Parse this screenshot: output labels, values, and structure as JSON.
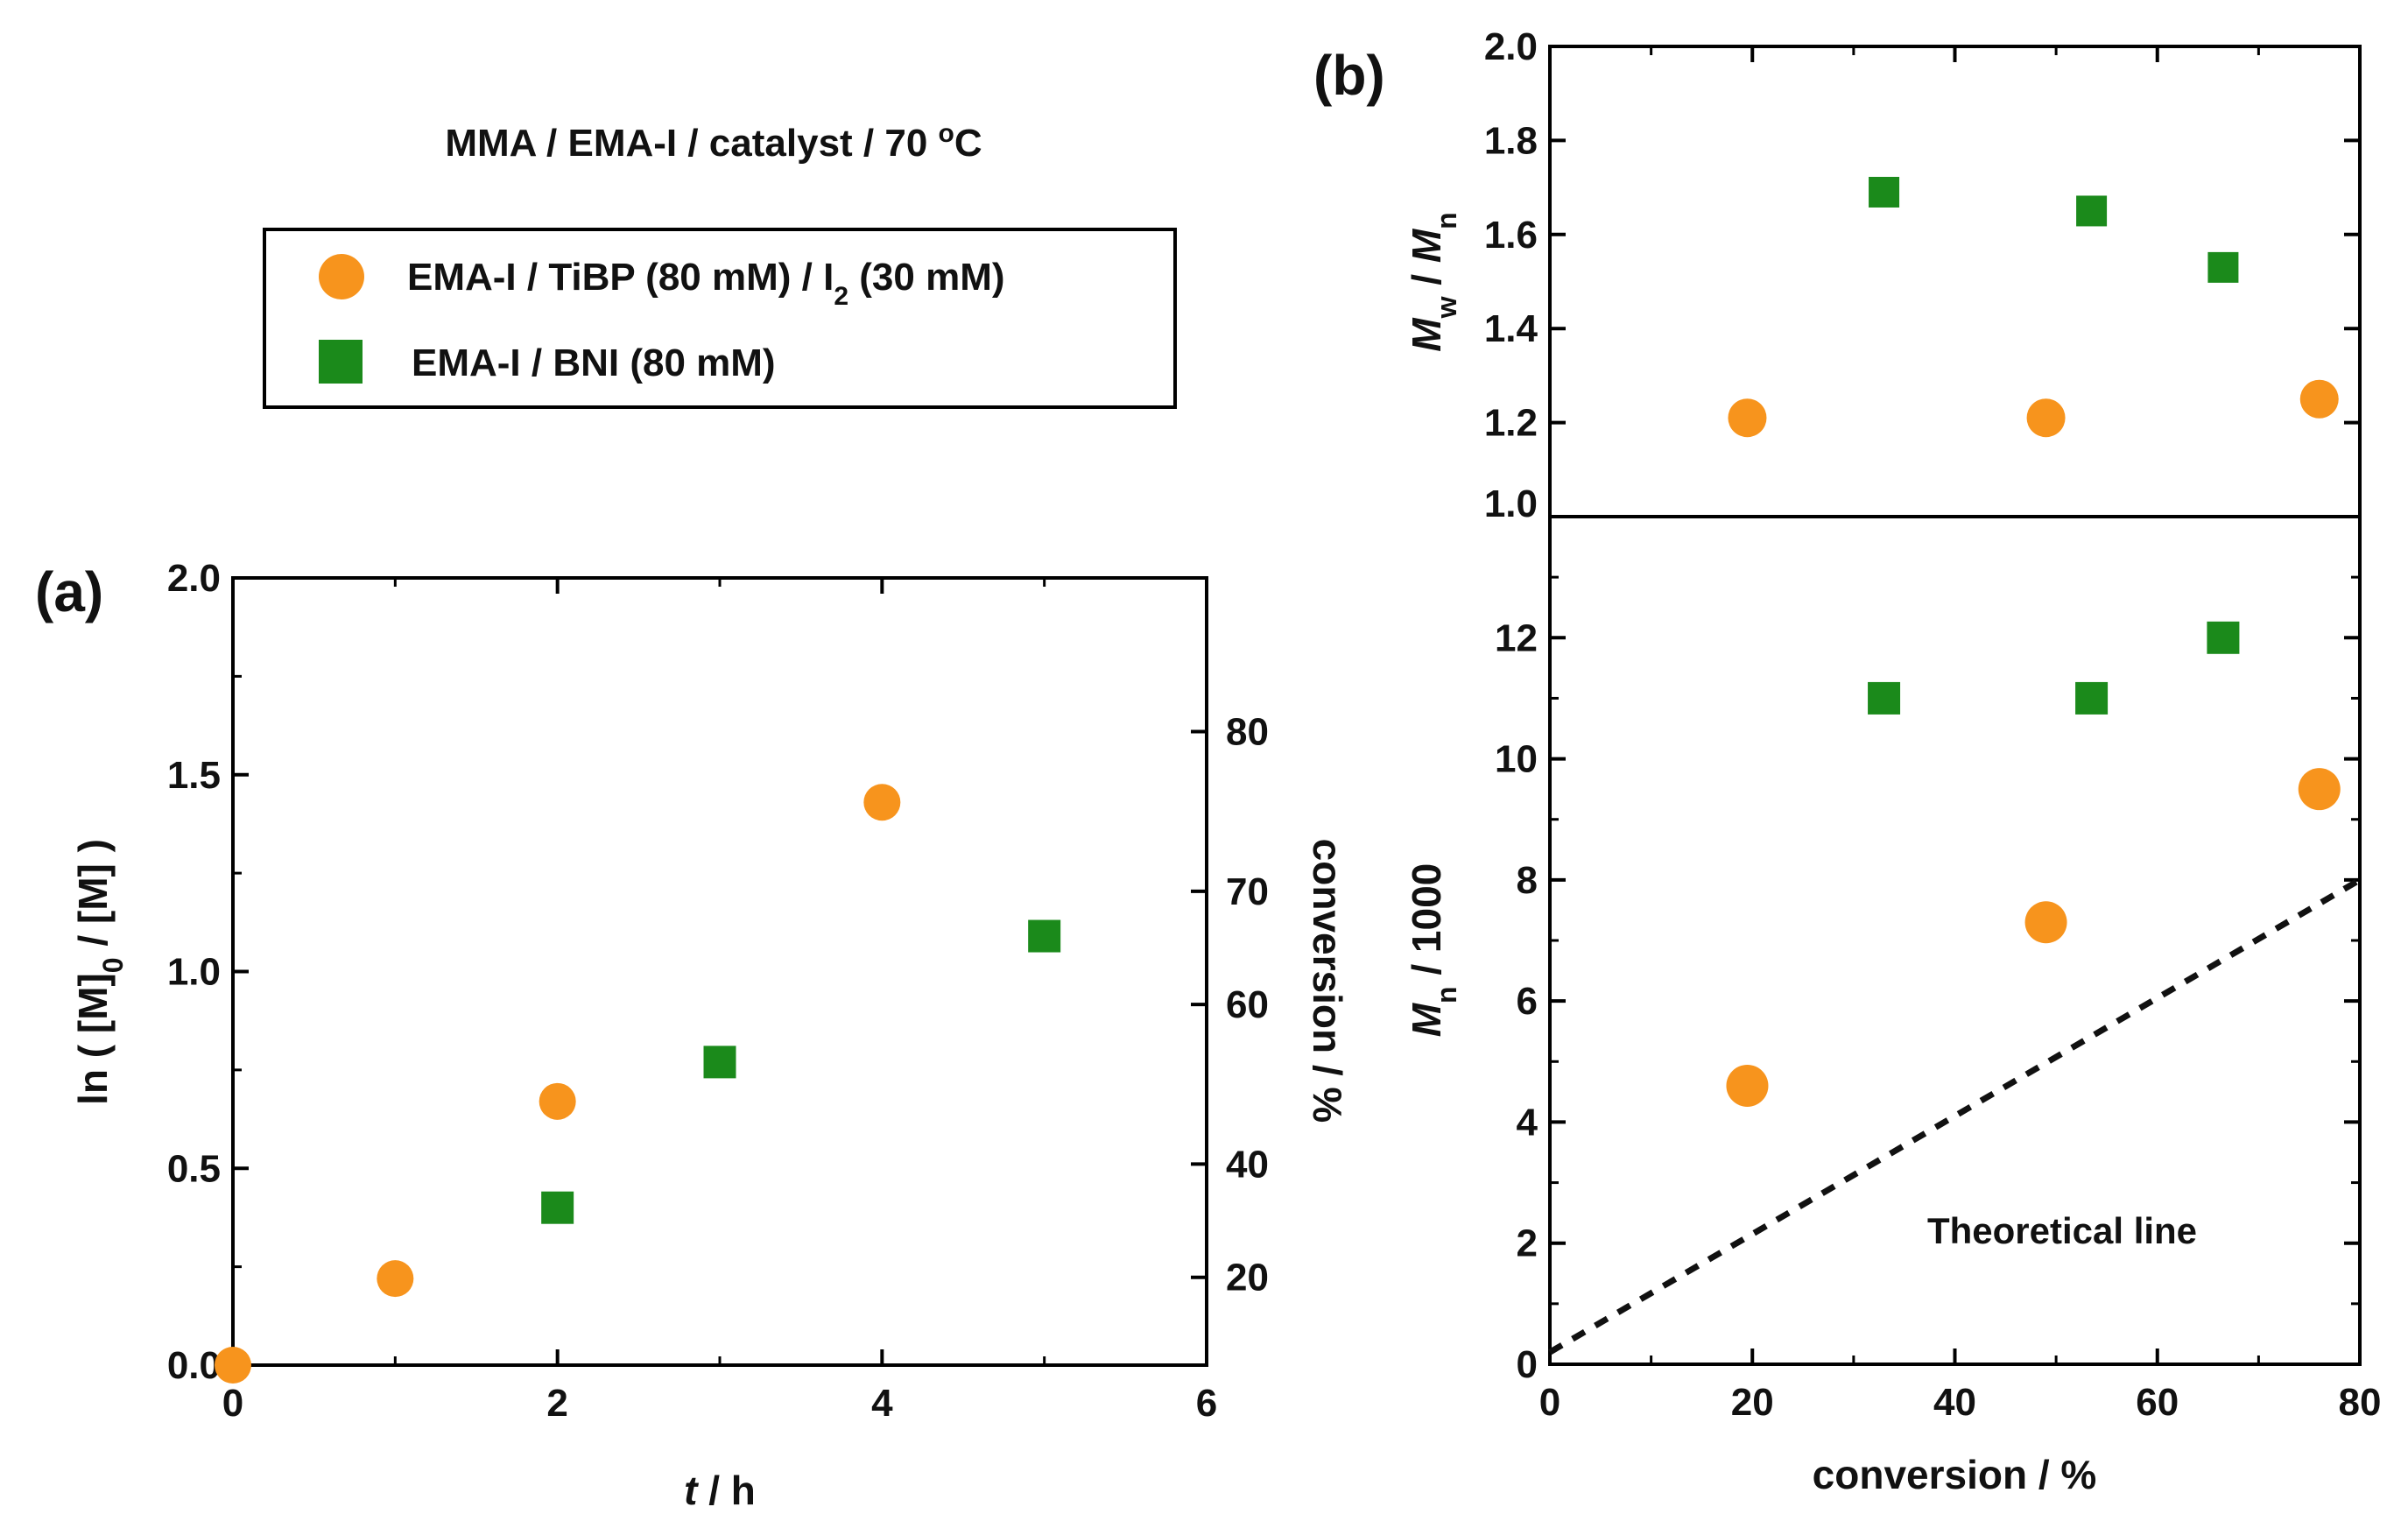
{
  "figure": {
    "condition_title": "MMA / EMA-I / catalyst / 70 ",
    "condition_deg": "o",
    "condition_unit": "C",
    "colors": {
      "orange": "#F7941D",
      "green": "#1B8A1B",
      "axis": "#000000"
    }
  },
  "legend": {
    "item1": {
      "a": "EMA-I / TiBP (80 mM) / I",
      "sub": "2",
      "b": " (30 mM)",
      "marker": "circle"
    },
    "item2": {
      "label": "EMA-I / BNI (80 mM)",
      "marker": "square"
    }
  },
  "theory_label": "Theoretical line",
  "chart_data": [
    {
      "panel": "(a)",
      "type": "scatter",
      "xlabel_italic": "t",
      "xlabel_rest": " / h",
      "ylabel_prefix": "ln ( [M]",
      "ylabel_sub": "0",
      "ylabel_suffix": " / [M] )",
      "y2label": "conversion / %",
      "xlim": [
        0,
        6
      ],
      "ylim": [
        0,
        2
      ],
      "xticks": [
        0,
        2,
        4,
        6
      ],
      "yticks": [
        0.0,
        0.5,
        1.0,
        1.5,
        2.0
      ],
      "ytick_labels": [
        "0.0",
        "0.5",
        "1.0",
        "1.5",
        "2.0"
      ],
      "y2ticks": [
        20,
        40,
        60,
        70,
        80
      ],
      "series": [
        {
          "name": "EMA-I / TiBP (80 mM) / I2 (30 mM)",
          "marker": "circle",
          "color": "#F7941D",
          "x": [
            0,
            1,
            2,
            4
          ],
          "y": [
            0.0,
            0.22,
            0.67,
            1.43
          ]
        },
        {
          "name": "EMA-I / BNI (80 mM)",
          "marker": "square",
          "color": "#1B8A1B",
          "x": [
            2,
            3,
            5
          ],
          "y": [
            0.4,
            0.77,
            1.09
          ]
        }
      ]
    },
    {
      "panel": "(b)",
      "type": "scatter",
      "subplot": "top",
      "ylabel_m1": "M",
      "ylabel_s1": "w",
      "ylabel_mid": " / ",
      "ylabel_m2": "M",
      "ylabel_s2": "n",
      "xlim": [
        0,
        80
      ],
      "ylim": [
        1.0,
        2.0
      ],
      "yticks": [
        1.0,
        1.2,
        1.4,
        1.6,
        1.8,
        2.0
      ],
      "ytick_labels": [
        "1.0",
        "1.2",
        "1.4",
        "1.6",
        "1.8",
        "2.0"
      ],
      "series": [
        {
          "name": "EMA-I / TiBP (80 mM) / I2 (30 mM)",
          "marker": "circle",
          "color": "#F7941D",
          "x": [
            19.5,
            49,
            76
          ],
          "y": [
            1.21,
            1.21,
            1.25
          ]
        },
        {
          "name": "EMA-I / BNI (80 mM)",
          "marker": "square",
          "color": "#1B8A1B",
          "x": [
            33,
            53.5,
            66.5
          ],
          "y": [
            1.69,
            1.65,
            1.53
          ]
        }
      ]
    },
    {
      "panel": "(b)",
      "type": "scatter",
      "subplot": "bottom",
      "xlabel": "conversion / %",
      "ylabel_m": "M",
      "ylabel_s": "n",
      "ylabel_rest": " / 1000",
      "xlim": [
        0,
        80
      ],
      "ylim": [
        0,
        14
      ],
      "xticks": [
        0,
        20,
        40,
        60,
        80
      ],
      "yticks": [
        0,
        2,
        4,
        6,
        8,
        10,
        12
      ],
      "series": [
        {
          "name": "EMA-I / TiBP (80 mM) / I2 (30 mM)",
          "marker": "circle",
          "color": "#F7941D",
          "x": [
            19.5,
            49,
            76
          ],
          "y": [
            4.6,
            7.3,
            9.5
          ]
        },
        {
          "name": "EMA-I / BNI (80 mM)",
          "marker": "square",
          "color": "#1B8A1B",
          "x": [
            33,
            53.5,
            66.5
          ],
          "y": [
            11,
            11,
            12
          ]
        }
      ],
      "theoretical_line": {
        "x": [
          0,
          80
        ],
        "y": [
          0.2,
          8.0
        ]
      }
    }
  ]
}
